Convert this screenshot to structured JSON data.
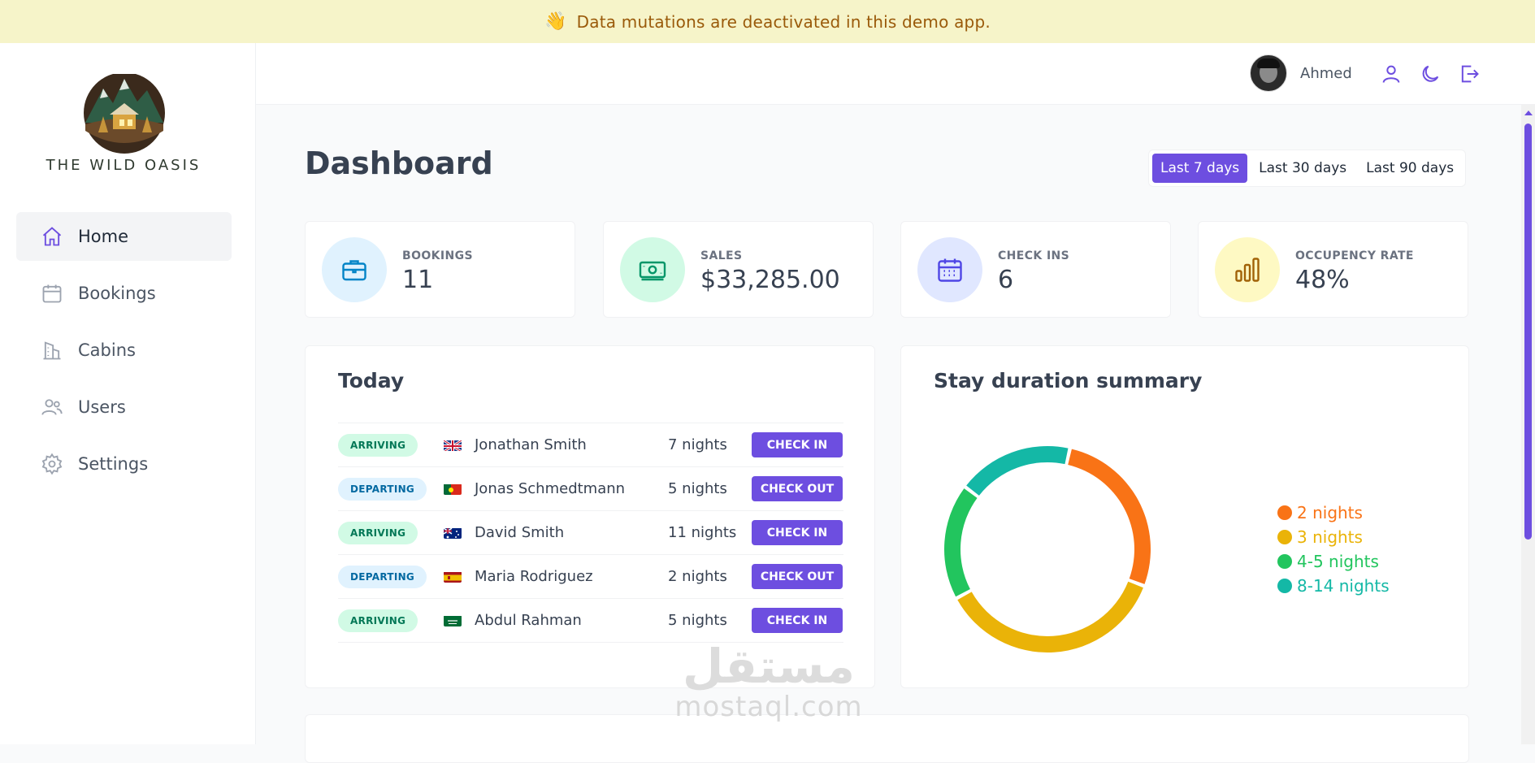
{
  "banner": {
    "icon": "waving-hand-icon",
    "text": "Data mutations are deactivated in this demo app."
  },
  "brand": {
    "name": "THE WILD OASIS"
  },
  "nav": [
    {
      "label": "Home",
      "icon": "home-icon",
      "active": true
    },
    {
      "label": "Bookings",
      "icon": "calendar-icon"
    },
    {
      "label": "Cabins",
      "icon": "building-icon"
    },
    {
      "label": "Users",
      "icon": "users-icon"
    },
    {
      "label": "Settings",
      "icon": "gear-icon"
    }
  ],
  "user": {
    "name": "Ahmed"
  },
  "page": {
    "title": "Dashboard"
  },
  "filters": {
    "options": [
      "Last 7 days",
      "Last 30 days",
      "Last 90 days"
    ],
    "selected": "Last 7 days"
  },
  "stats": [
    {
      "label": "BOOKINGS",
      "value": "11",
      "icon": "briefcase-icon"
    },
    {
      "label": "SALES",
      "value": "$33,285.00",
      "icon": "banknotes-icon"
    },
    {
      "label": "CHECK INS",
      "value": "6",
      "icon": "calendar-days-icon"
    },
    {
      "label": "OCCUPENCY RATE",
      "value": "48%",
      "icon": "chart-bar-icon"
    }
  ],
  "today": {
    "title": "Today",
    "rows": [
      {
        "status": "ARRIVING",
        "flag": "gb",
        "guest": "Jonathan Smith",
        "nights": "7 nights",
        "action": "CHECK IN"
      },
      {
        "status": "DEPARTING",
        "flag": "pt",
        "guest": "Jonas Schmedtmann",
        "nights": "5 nights",
        "action": "CHECK OUT"
      },
      {
        "status": "ARRIVING",
        "flag": "au",
        "guest": "David Smith",
        "nights": "11 nights",
        "action": "CHECK IN"
      },
      {
        "status": "DEPARTING",
        "flag": "es",
        "guest": "Maria Rodriguez",
        "nights": "2 nights",
        "action": "CHECK OUT"
      },
      {
        "status": "ARRIVING",
        "flag": "sa",
        "guest": "Abdul Rahman",
        "nights": "5 nights",
        "action": "CHECK IN"
      }
    ]
  },
  "durations": {
    "title": "Stay duration summary"
  },
  "chart_data": {
    "type": "pie",
    "title": "Stay duration summary",
    "series": [
      {
        "name": "2 nights",
        "value": 27,
        "color": "#f97316"
      },
      {
        "name": "3 nights",
        "value": 36,
        "color": "#eab308"
      },
      {
        "name": "4-5 nights",
        "value": 18,
        "color": "#22c55e"
      },
      {
        "name": "8-14 nights",
        "value": 18,
        "color": "#14b8a6"
      }
    ],
    "legend": "right"
  },
  "watermark": {
    "arabic": "مستقل",
    "latin": "mostaql.com"
  },
  "colors": {
    "accent": "#6d4ee0",
    "banner_bg": "#f6f4c9",
    "banner_text": "#9a5a0a"
  }
}
